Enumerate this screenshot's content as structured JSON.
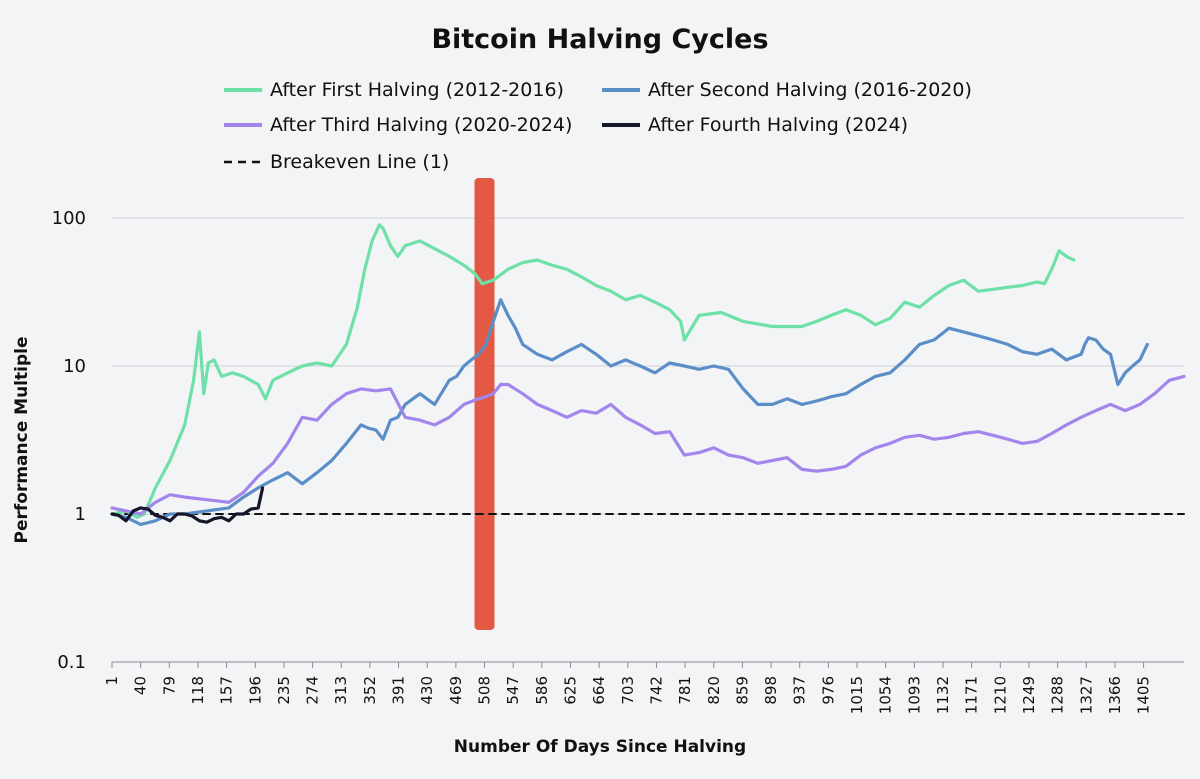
{
  "chart_data": {
    "type": "line",
    "title": "Bitcoin Halving Cycles",
    "xlabel": "Number Of Days Since Halving",
    "ylabel": "Performance Multiple",
    "yscale": "log",
    "ylim": [
      0.1,
      100
    ],
    "xlim": [
      1,
      1460
    ],
    "y_ticks": [
      0.1,
      1,
      10,
      100
    ],
    "y_tick_labels": [
      "0.1",
      "1",
      "10",
      "100"
    ],
    "x_ticks": [
      1,
      40,
      79,
      118,
      157,
      196,
      235,
      274,
      313,
      352,
      391,
      430,
      469,
      508,
      547,
      586,
      625,
      664,
      703,
      742,
      781,
      820,
      859,
      898,
      937,
      976,
      1015,
      1054,
      1093,
      1132,
      1171,
      1210,
      1249,
      1288,
      1327,
      1366,
      1405
    ],
    "x_tick_labels": [
      "1",
      "40",
      "79",
      "118",
      "157",
      "196",
      "235",
      "274",
      "313",
      "352",
      "391",
      "430",
      "469",
      "508",
      "547",
      "586",
      "625",
      "664",
      "703",
      "742",
      "781",
      "820",
      "859",
      "898",
      "937",
      "976",
      "1015",
      "1054",
      "1093",
      "1132",
      "1171",
      "1210",
      "1249",
      "1288",
      "1327",
      "1366",
      "1405"
    ],
    "grid": "horizontal",
    "legend": "top-center",
    "highlight": {
      "label": "",
      "day": 508,
      "color": "#e0432b"
    },
    "series": [
      {
        "name": "After First Halving (2012-2016)",
        "color": "#6ee0a8",
        "x": [
          1,
          20,
          35,
          45,
          60,
          80,
          100,
          112,
          120,
          126,
          132,
          140,
          150,
          165,
          180,
          200,
          210,
          220,
          240,
          260,
          280,
          300,
          320,
          335,
          345,
          355,
          365,
          370,
          380,
          390,
          400,
          420,
          440,
          460,
          480,
          495,
          505,
          520,
          540,
          560,
          580,
          600,
          620,
          640,
          660,
          680,
          700,
          720,
          740,
          760,
          775,
          780,
          800,
          830,
          860,
          900,
          940,
          960,
          980,
          1000,
          1020,
          1040,
          1050,
          1060,
          1080,
          1100,
          1120,
          1140,
          1160,
          1180,
          1200,
          1220,
          1240,
          1260,
          1270,
          1280,
          1290,
          1300,
          1310
        ],
        "values": [
          1.0,
          1.05,
          0.95,
          1.0,
          1.5,
          2.3,
          4.0,
          8.0,
          17.0,
          6.5,
          10.5,
          11.0,
          8.5,
          9.0,
          8.5,
          7.5,
          6.0,
          8.0,
          9.0,
          10.0,
          10.5,
          10.0,
          14.0,
          25.0,
          45.0,
          70.0,
          90.0,
          85.0,
          65.0,
          55.0,
          65.0,
          70.0,
          62.0,
          55.0,
          48.0,
          42.0,
          36.0,
          38.0,
          45.0,
          50.0,
          52.0,
          48.0,
          45.0,
          40.0,
          35.0,
          32.0,
          28.0,
          30.0,
          27.0,
          24.0,
          20.0,
          15.0,
          22.0,
          23.0,
          20.0,
          18.5,
          18.5,
          20.0,
          22.0,
          24.0,
          22.0,
          19.0,
          20.0,
          21.0,
          27.0,
          25.0,
          30.0,
          35.0,
          38.0,
          32.0,
          33.0,
          34.0,
          35.0,
          37.0,
          36.0,
          45.0,
          60.0,
          55.0,
          52.0
        ]
      },
      {
        "name": "After Second Halving (2016-2020)",
        "color": "#5b8ec7",
        "x": [
          1,
          20,
          40,
          60,
          80,
          100,
          130,
          160,
          180,
          200,
          220,
          240,
          260,
          280,
          300,
          320,
          340,
          350,
          360,
          370,
          380,
          390,
          400,
          420,
          440,
          460,
          470,
          480,
          490,
          500,
          510,
          520,
          530,
          540,
          550,
          560,
          580,
          600,
          620,
          640,
          660,
          680,
          700,
          720,
          740,
          760,
          780,
          800,
          820,
          840,
          860,
          880,
          900,
          920,
          940,
          960,
          980,
          1000,
          1020,
          1040,
          1060,
          1080,
          1100,
          1120,
          1140,
          1160,
          1180,
          1200,
          1220,
          1240,
          1260,
          1280,
          1300,
          1310,
          1320,
          1325,
          1330,
          1340,
          1350,
          1360,
          1370,
          1380,
          1390,
          1400,
          1410
        ],
        "values": [
          1.0,
          0.95,
          0.85,
          0.9,
          1.0,
          1.0,
          1.05,
          1.1,
          1.3,
          1.5,
          1.7,
          1.9,
          1.6,
          1.9,
          2.3,
          3.0,
          4.0,
          3.8,
          3.7,
          3.2,
          4.3,
          4.5,
          5.5,
          6.5,
          5.5,
          8.0,
          8.5,
          10.0,
          11.0,
          12.0,
          14.0,
          20.0,
          28.0,
          22.0,
          18.0,
          14.0,
          12.0,
          11.0,
          12.5,
          14.0,
          12.0,
          10.0,
          11.0,
          10.0,
          9.0,
          10.5,
          10.0,
          9.5,
          10.0,
          9.5,
          7.0,
          5.5,
          5.5,
          6.0,
          5.5,
          5.8,
          6.2,
          6.5,
          7.5,
          8.5,
          9.0,
          11.0,
          14.0,
          15.0,
          18.0,
          17.0,
          16.0,
          15.0,
          14.0,
          12.5,
          12.0,
          13.0,
          11.0,
          11.5,
          12.0,
          14.0,
          15.5,
          15.0,
          13.0,
          12.0,
          7.5,
          9.0,
          10.0,
          11.0,
          14.0
        ],
        "values_note": "approximate"
      },
      {
        "name": "After Third Halving (2020-2024)",
        "color": "#a386ec",
        "x": [
          1,
          20,
          40,
          60,
          80,
          100,
          130,
          160,
          180,
          200,
          220,
          240,
          260,
          280,
          300,
          320,
          340,
          360,
          380,
          400,
          420,
          440,
          460,
          480,
          500,
          510,
          520,
          530,
          540,
          560,
          580,
          600,
          620,
          640,
          660,
          680,
          700,
          720,
          740,
          760,
          780,
          800,
          820,
          840,
          860,
          880,
          900,
          920,
          940,
          960,
          980,
          1000,
          1020,
          1040,
          1060,
          1080,
          1100,
          1120,
          1140,
          1160,
          1180,
          1200,
          1220,
          1240,
          1260,
          1280,
          1300,
          1320,
          1340,
          1360,
          1380,
          1400,
          1420,
          1440,
          1460
        ],
        "values": [
          1.1,
          1.05,
          1.0,
          1.2,
          1.35,
          1.3,
          1.25,
          1.2,
          1.4,
          1.8,
          2.2,
          3.0,
          4.5,
          4.3,
          5.5,
          6.5,
          7.0,
          6.8,
          7.0,
          4.5,
          4.3,
          4.0,
          4.5,
          5.5,
          6.0,
          6.2,
          6.5,
          7.5,
          7.5,
          6.5,
          5.5,
          5.0,
          4.5,
          5.0,
          4.8,
          5.5,
          4.5,
          4.0,
          3.5,
          3.6,
          2.5,
          2.6,
          2.8,
          2.5,
          2.4,
          2.2,
          2.3,
          2.4,
          2.0,
          1.95,
          2.0,
          2.1,
          2.5,
          2.8,
          3.0,
          3.3,
          3.4,
          3.2,
          3.3,
          3.5,
          3.6,
          3.4,
          3.2,
          3.0,
          3.1,
          3.5,
          4.0,
          4.5,
          5.0,
          5.5,
          5.0,
          5.5,
          6.5,
          8.0,
          8.5
        ],
        "values_note": "approximate"
      },
      {
        "name": "After Fourth Halving (2024)",
        "color": "#16162a",
        "x": [
          1,
          10,
          20,
          30,
          40,
          50,
          60,
          70,
          80,
          90,
          100,
          110,
          120,
          130,
          140,
          150,
          160,
          170,
          180,
          190,
          200,
          206
        ],
        "values": [
          1.0,
          0.98,
          0.9,
          1.05,
          1.1,
          1.08,
          0.98,
          0.95,
          0.9,
          1.0,
          1.0,
          0.97,
          0.9,
          0.88,
          0.93,
          0.95,
          0.9,
          1.0,
          1.0,
          1.08,
          1.1,
          1.5
        ]
      },
      {
        "name": "Breakeven Line (1)",
        "color": "#111111",
        "dashed": true,
        "x": [
          1,
          1460
        ],
        "values": [
          1,
          1
        ]
      }
    ]
  }
}
